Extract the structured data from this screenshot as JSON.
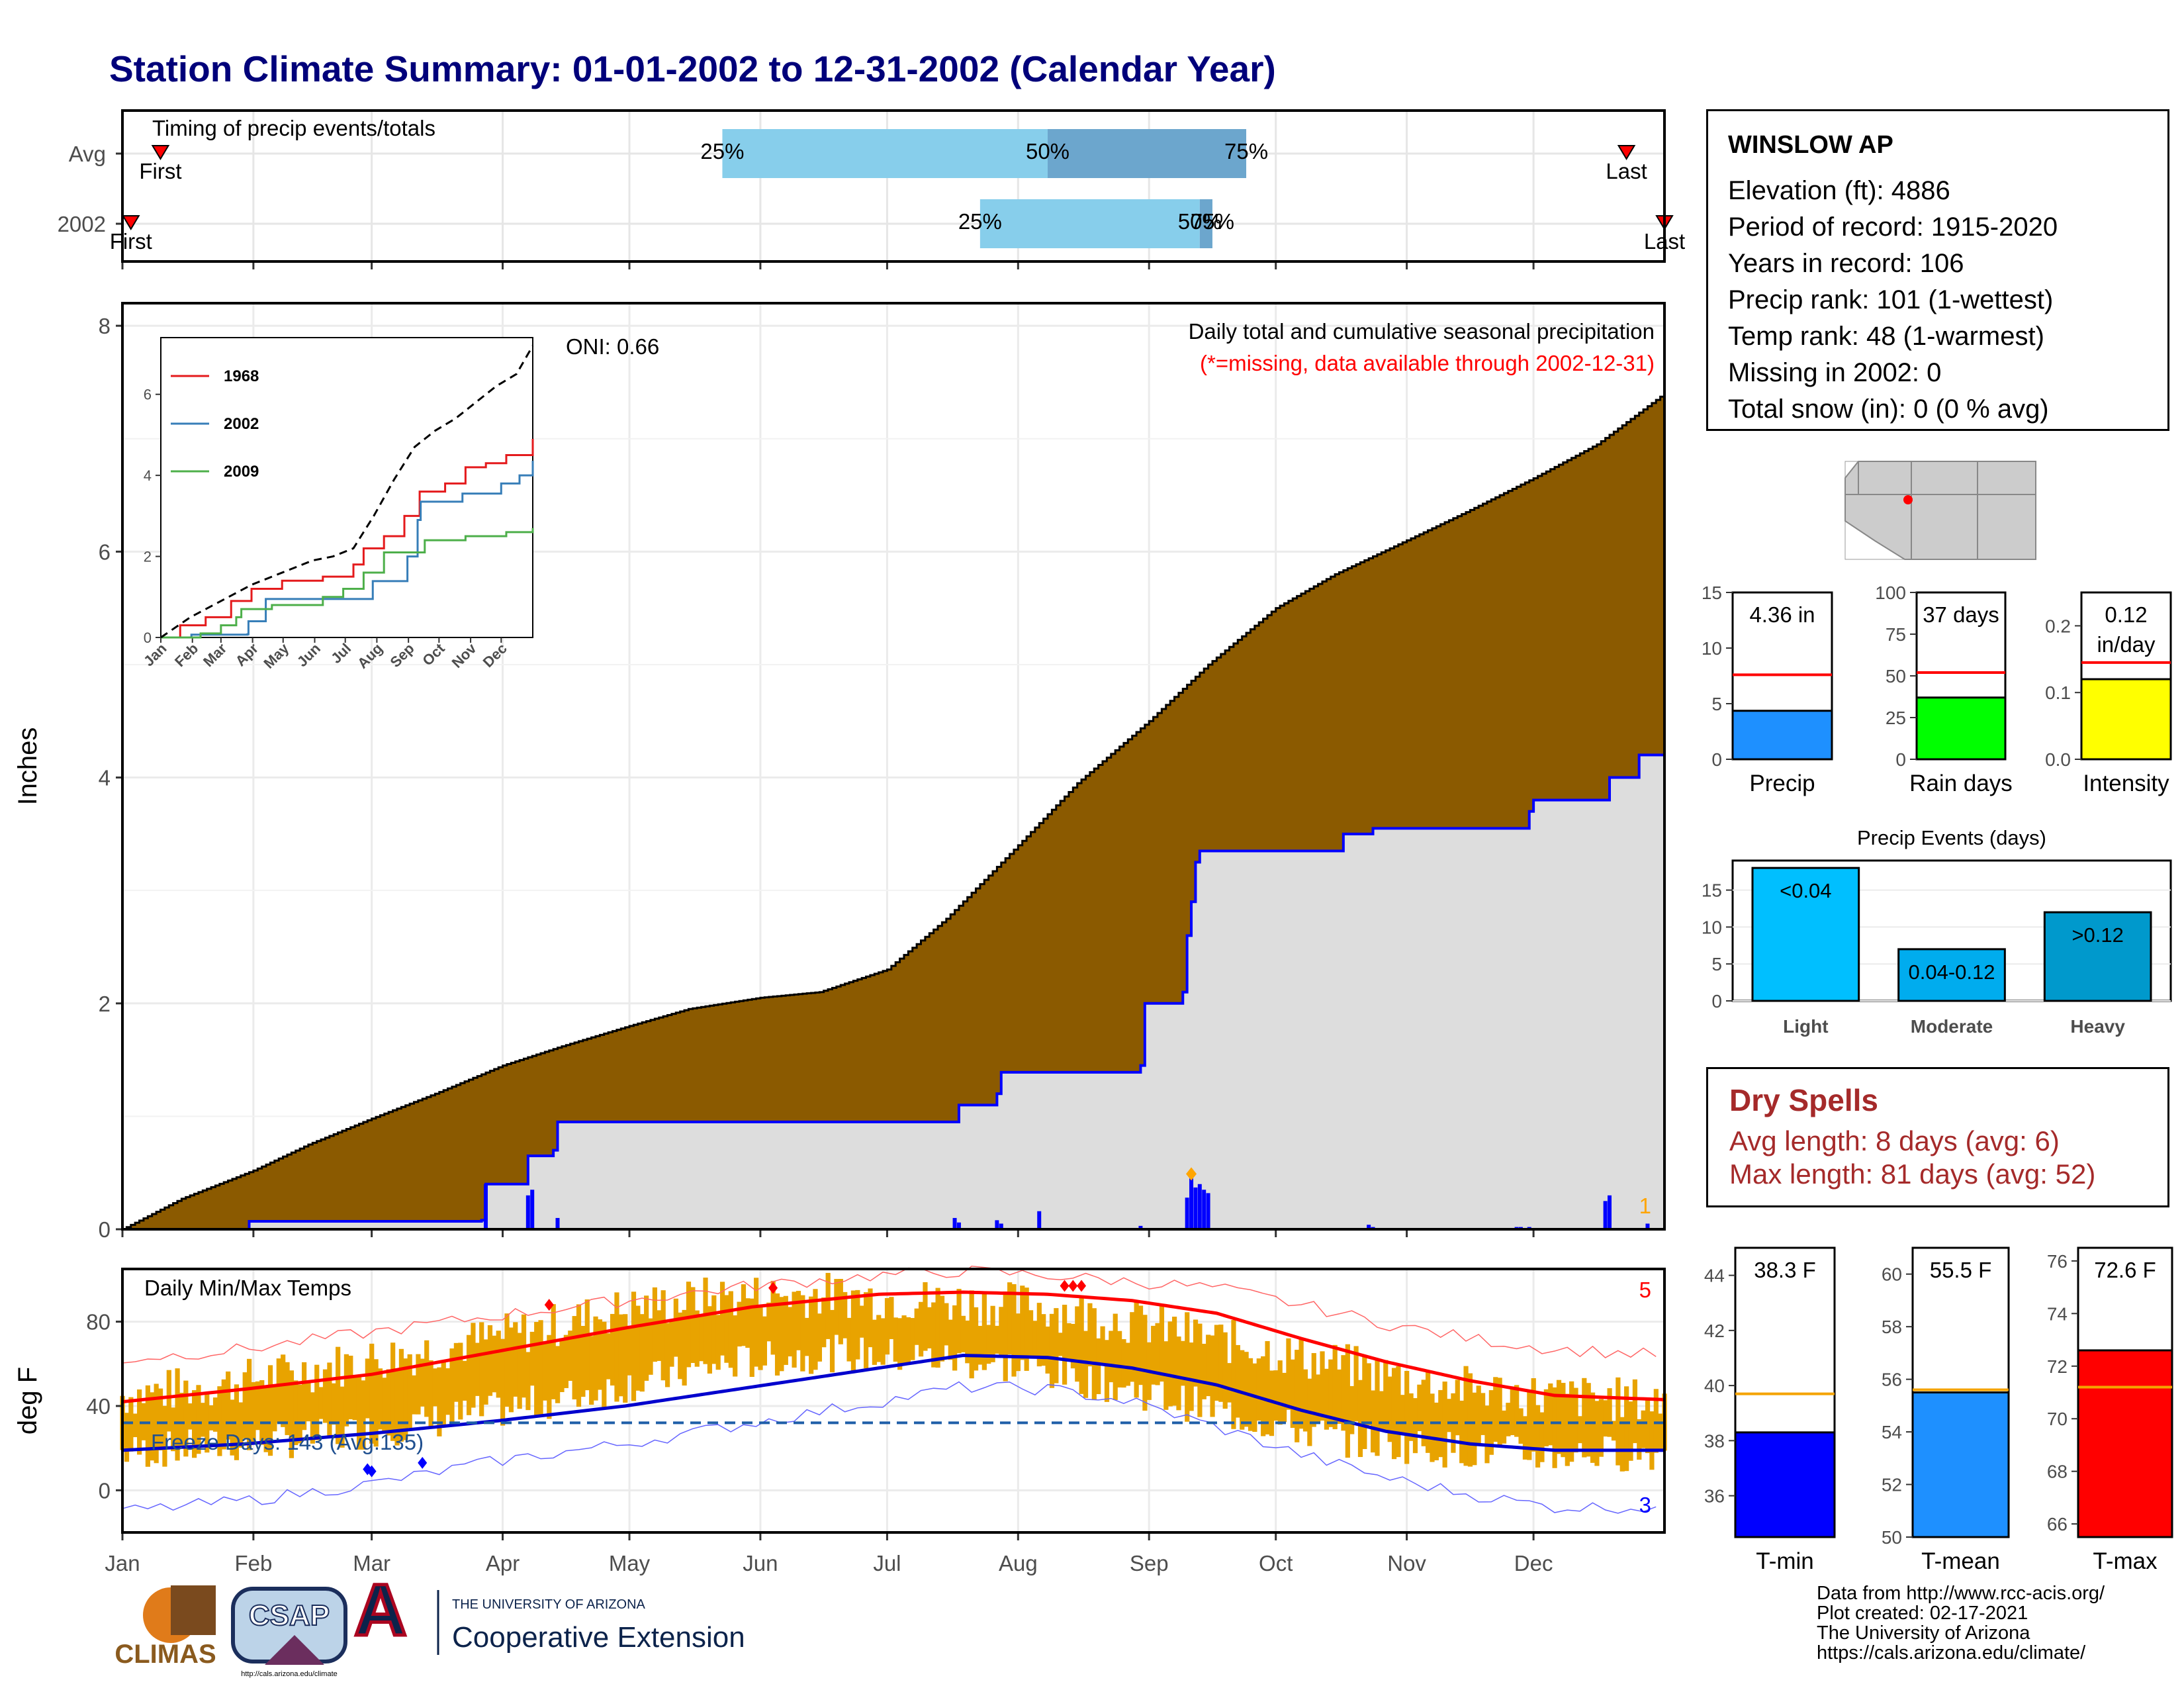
{
  "title": "Station Climate Summary: 01-01-2002 to 12-31-2002 (Calendar Year)",
  "station": {
    "name": "WINSLOW AP",
    "rows": [
      "Elevation (ft): 4886",
      "Period of record: 1915-2020",
      "Years in record: 106",
      "Precip rank: 101 (1-wettest)",
      "Temp rank: 48 (1-warmest)",
      "Missing in 2002: 0",
      "Total snow (in): 0 (0 % avg)"
    ]
  },
  "dry_spells": {
    "title": "Dry Spells",
    "avg": "Avg length: 8 days (avg: 6)",
    "max": "Max length: 81 days (avg: 52)"
  },
  "credits": [
    "Data from http://www.rcc-acis.org/",
    "Plot created: 02-17-2021",
    "The University of Arizona",
    "https://cals.arizona.edu/climate/"
  ],
  "logos": {
    "climas": "CLIMAS",
    "csap": "CSAP",
    "ua_top": "THE UNIVERSITY OF ARIZONA",
    "ua_main": "Cooperative Extension",
    "csap_url": "http://cals.arizona.edu/climate"
  },
  "colors": {
    "cumulative_avg": "#8b5a00",
    "cumulative_2002": "#dddddd",
    "precip_bar": "#0000ff",
    "temp_bar": "#e8a300",
    "tmax_line": "#ff0000",
    "tmin_line": "#0000cd",
    "title": "#00007a",
    "dry_spell": "#a52a2a"
  },
  "months": [
    "Jan",
    "Feb",
    "Mar",
    "Apr",
    "May",
    "Jun",
    "Jul",
    "Aug",
    "Sep",
    "Oct",
    "Nov",
    "Dec"
  ],
  "chart_data": [
    {
      "id": "timing",
      "type": "bar",
      "title": "Timing of precip events/totals",
      "rows": [
        {
          "label": "Avg",
          "first": "First",
          "last": "Last",
          "first_day": 10,
          "last_day": 357,
          "p25_day": 143,
          "p50_day": 220,
          "p75_day": 267
        },
        {
          "label": "2002",
          "first": "First",
          "last": "Last",
          "first_day": 3,
          "last_day": 366,
          "p25_day": 204,
          "p50_day": 256,
          "p75_day": 259
        }
      ],
      "pct_labels": [
        "25%",
        "50%",
        "75%"
      ]
    },
    {
      "id": "precip",
      "type": "area",
      "title": "Daily total and cumulative seasonal precipitation",
      "subtitle": "(*=missing, data available through 2002-12-31)",
      "ylabel": "Inches",
      "ylim": [
        0,
        8.2
      ],
      "yticks": [
        0,
        2,
        4,
        6,
        8
      ],
      "oni": "ONI: 0.66",
      "top_count": "1",
      "avg_cumulative": {
        "x": [
          1,
          15,
          32,
          45,
          60,
          75,
          91,
          105,
          121,
          135,
          152,
          166,
          182,
          196,
          213,
          227,
          244,
          258,
          274,
          288,
          305,
          319,
          335,
          350,
          366
        ],
        "y": [
          0,
          0.27,
          0.52,
          0.75,
          0.98,
          1.2,
          1.45,
          1.62,
          1.8,
          1.95,
          2.05,
          2.1,
          2.3,
          2.75,
          3.4,
          3.95,
          4.5,
          5.0,
          5.5,
          5.8,
          6.1,
          6.35,
          6.65,
          6.95,
          7.4
        ]
      },
      "obs_cumulative": {
        "x": [
          1,
          30,
          31,
          86,
          87,
          96,
          97,
          103,
          104,
          198,
          199,
          208,
          209,
          242,
          243,
          252,
          253,
          254,
          255,
          256,
          290,
          296,
          297,
          334,
          335,
          352,
          353,
          360,
          366
        ],
        "y": [
          0,
          0,
          0.07,
          0.08,
          0.4,
          0.4,
          0.65,
          0.7,
          0.95,
          0.95,
          1.1,
          1.2,
          1.39,
          1.45,
          2.0,
          2.1,
          2.6,
          2.9,
          3.25,
          3.35,
          3.5,
          3.5,
          3.55,
          3.7,
          3.8,
          3.8,
          4.0,
          4.2,
          4.36
        ]
      },
      "daily_bars": {
        "x": [
          31,
          87,
          97,
          98,
          104,
          198,
          199,
          208,
          209,
          218,
          242,
          253,
          254,
          255,
          256,
          257,
          258,
          296,
          297,
          331,
          332,
          334,
          352,
          353,
          362
        ],
        "y": [
          0.01,
          0.4,
          0.3,
          0.35,
          0.1,
          0.1,
          0.06,
          0.08,
          0.05,
          0.16,
          0.03,
          0.28,
          0.45,
          0.37,
          0.4,
          0.35,
          0.32,
          0.04,
          0.02,
          0.02,
          0.02,
          0.02,
          0.25,
          0.3,
          0.05
        ]
      },
      "inset": {
        "yticks": [
          0,
          2,
          4,
          6
        ],
        "ylim": [
          0,
          7.4
        ],
        "series": [
          {
            "name": "1968",
            "color": "#e41a1c",
            "x": [
              1,
              20,
              45,
              70,
              90,
              120,
              160,
              190,
              200,
              220,
              240,
              255,
              280,
              300,
              320,
              340,
              366
            ],
            "y": [
              0,
              0.3,
              0.5,
              0.9,
              1.2,
              1.4,
              1.5,
              1.8,
              2.2,
              2.5,
              3.0,
              3.6,
              3.8,
              4.2,
              4.3,
              4.5,
              4.9
            ]
          },
          {
            "name": "2002",
            "color": "#377eb8",
            "x": [
              1,
              30,
              31,
              86,
              87,
              104,
              198,
              209,
              243,
              253,
              256,
              297,
              335,
              353,
              366
            ],
            "y": [
              0,
              0,
              0.07,
              0.08,
              0.4,
              0.95,
              0.95,
              1.39,
              2.0,
              2.9,
              3.35,
              3.55,
              3.8,
              4.0,
              4.36
            ]
          },
          {
            "name": "2009",
            "color": "#4daf4a",
            "x": [
              1,
              40,
              60,
              75,
              80,
              110,
              160,
              180,
              200,
              220,
              260,
              300,
              340,
              366
            ],
            "y": [
              0,
              0.1,
              0.3,
              0.5,
              0.7,
              0.8,
              1.0,
              1.2,
              1.6,
              2.1,
              2.4,
              2.5,
              2.6,
              2.7
            ]
          }
        ],
        "max_line": {
          "name": "",
          "x": [
            1,
            30,
            60,
            90,
            120,
            150,
            170,
            190,
            210,
            230,
            250,
            270,
            290,
            310,
            330,
            350,
            366
          ],
          "y": [
            0,
            0.5,
            0.9,
            1.3,
            1.6,
            1.9,
            2.0,
            2.2,
            3.0,
            3.9,
            4.7,
            5.1,
            5.4,
            5.8,
            6.2,
            6.5,
            7.2
          ]
        },
        "xticks": [
          "Jan",
          "Feb",
          "Mar",
          "Apr",
          "May",
          "Jun",
          "Jul",
          "Aug",
          "Sep",
          "Oct",
          "Nov",
          "Dec"
        ]
      }
    },
    {
      "id": "temps",
      "type": "bar",
      "title": "Daily Min/Max Temps",
      "ylabel": "deg F",
      "ylim": [
        -20,
        105
      ],
      "yticks": [
        0,
        40,
        80
      ],
      "freeze_text": "Freeze Days: 143 (Avg:135)",
      "freeze_line": 32,
      "record_high_count": "5",
      "record_low_count": "3",
      "avg_tmax": {
        "x": [
          1,
          30,
          60,
          90,
          120,
          150,
          180,
          200,
          220,
          240,
          260,
          280,
          300,
          320,
          340,
          366
        ],
        "y": [
          42,
          48,
          55,
          66,
          77,
          87,
          93,
          94,
          93,
          90,
          84,
          72,
          61,
          52,
          45,
          43
        ]
      },
      "avg_tmin": {
        "x": [
          1,
          30,
          60,
          90,
          120,
          150,
          180,
          200,
          220,
          240,
          260,
          280,
          300,
          320,
          340,
          366
        ],
        "y": [
          19,
          22,
          27,
          33,
          40,
          49,
          58,
          64,
          63,
          58,
          50,
          38,
          28,
          22,
          19,
          19
        ]
      },
      "rec_tmax": {
        "x": [
          1,
          30,
          60,
          90,
          120,
          150,
          180,
          200,
          220,
          240,
          260,
          280,
          300,
          320,
          340,
          366
        ],
        "y": [
          62,
          67,
          75,
          83,
          90,
          97,
          102,
          104,
          102,
          99,
          96,
          88,
          79,
          72,
          67,
          64
        ]
      },
      "rec_tmin": {
        "x": [
          1,
          30,
          60,
          90,
          120,
          150,
          180,
          200,
          220,
          240,
          260,
          280,
          300,
          320,
          340,
          366
        ],
        "y": [
          -10,
          -5,
          3,
          14,
          22,
          32,
          42,
          49,
          48,
          42,
          30,
          17,
          6,
          -2,
          -8,
          -8
        ]
      },
      "obs_tmax_seed": [
        45,
        50,
        58,
        66,
        75,
        86,
        92,
        93,
        90,
        88,
        80,
        70,
        60,
        50,
        45,
        42
      ],
      "obs_tmin_seed": [
        18,
        21,
        25,
        32,
        40,
        50,
        60,
        65,
        63,
        58,
        48,
        36,
        25,
        20,
        17,
        18
      ]
    },
    {
      "id": "summary_bars",
      "type": "bar",
      "panels": [
        {
          "label": "Precip",
          "value_text": "4.36 in",
          "value": 4.36,
          "avg": 7.6,
          "ylim": [
            0,
            15
          ],
          "yticks": [
            0,
            5,
            10,
            15
          ],
          "color": "#1e90ff",
          "avg_color": "#ff0000"
        },
        {
          "label": "Rain days",
          "value_text": "37 days",
          "value": 37,
          "avg": 52,
          "ylim": [
            0,
            100
          ],
          "yticks": [
            0,
            25,
            50,
            75,
            100
          ],
          "color": "#00ff00",
          "avg_color": "#ff0000"
        },
        {
          "label": "Intensity",
          "value_text": "0.12 in/day",
          "value": 0.12,
          "avg": 0.145,
          "ylim": [
            0,
            0.25
          ],
          "yticks": [
            0.0,
            0.1,
            0.2
          ],
          "color": "#ffff00",
          "avg_color": "#ff0000"
        }
      ]
    },
    {
      "id": "precip_events",
      "type": "bar",
      "title": "Precip Events (days)",
      "categories": [
        "Light",
        "Moderate",
        "Heavy"
      ],
      "bar_labels": [
        "<0.04",
        "0.04-0.12",
        ">0.12"
      ],
      "values": [
        18,
        7,
        12
      ],
      "ylim": [
        0,
        19
      ],
      "yticks": [
        0,
        5,
        10,
        15
      ],
      "colors": [
        "#00bfff",
        "#00acee",
        "#0099cc"
      ]
    },
    {
      "id": "temp_bars",
      "type": "bar",
      "panels": [
        {
          "label": "T-min",
          "value_text": "38.3 F",
          "value": 38.3,
          "avg": 39.7,
          "ylim": [
            34.5,
            45
          ],
          "yticks": [
            36,
            38,
            40,
            42,
            44
          ],
          "color": "#0000ff",
          "avg_color": "#f4a300"
        },
        {
          "label": "T-mean",
          "value_text": "55.5 F",
          "value": 55.5,
          "avg": 55.6,
          "ylim": [
            50,
            61
          ],
          "yticks": [
            50,
            52,
            54,
            56,
            58,
            60
          ],
          "color": "#1e90ff",
          "avg_color": "#f4a300"
        },
        {
          "label": "T-max",
          "value_text": "72.6 F",
          "value": 72.6,
          "avg": 71.2,
          "ylim": [
            65.5,
            76.5
          ],
          "yticks": [
            66,
            68,
            70,
            72,
            74,
            76
          ],
          "color": "#ff0000",
          "avg_color": "#f4a300"
        }
      ]
    }
  ]
}
